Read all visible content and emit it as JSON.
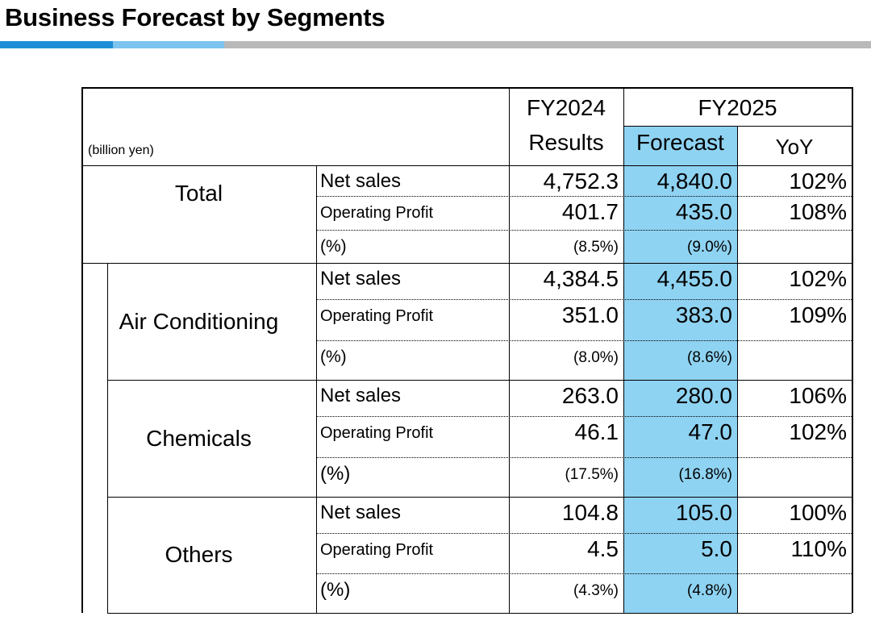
{
  "page": {
    "title": "Business Forecast by Segments"
  },
  "table": {
    "unit": "(billion yen)",
    "header": {
      "fy2024": "FY2024",
      "fy2024_sub": "Results",
      "fy2025": "FY2025",
      "forecast": "Forecast",
      "yoy": "YoY"
    },
    "segments": [
      {
        "name": "Total",
        "net_sales_label": "Net sales",
        "net_sales_fy2024": "4,752.3",
        "net_sales_fy2025": "4,840.0",
        "net_sales_yoy": "102%",
        "op_label": "Operating Profit",
        "op_fy2024": "401.7",
        "op_fy2025": "435.0",
        "op_yoy": "108%",
        "margin_label": "(%)",
        "margin_fy2024": "(8.5%)",
        "margin_fy2025": "(9.0%)"
      },
      {
        "name": "Air Conditioning",
        "net_sales_label": "Net sales",
        "net_sales_fy2024": "4,384.5",
        "net_sales_fy2025": "4,455.0",
        "net_sales_yoy": "102%",
        "op_label": "Operating Profit",
        "op_fy2024": "351.0",
        "op_fy2025": "383.0",
        "op_yoy": "109%",
        "margin_label": "(%)",
        "margin_fy2024": "(8.0%)",
        "margin_fy2025": "(8.6%)"
      },
      {
        "name": "Chemicals",
        "net_sales_label": "Net sales",
        "net_sales_fy2024": "263.0",
        "net_sales_fy2025": "280.0",
        "net_sales_yoy": "106%",
        "op_label": "Operating Profit",
        "op_fy2024": "46.1",
        "op_fy2025": "47.0",
        "op_yoy": "102%",
        "margin_label": "(%)",
        "margin_fy2024": "(17.5%)",
        "margin_fy2025": "(16.8%)"
      },
      {
        "name": "Others",
        "net_sales_label": "Net sales",
        "net_sales_fy2024": "104.8",
        "net_sales_fy2025": "105.0",
        "net_sales_yoy": "100%",
        "op_label": "Operating Profit",
        "op_fy2024": "4.5",
        "op_fy2025": "5.0",
        "op_yoy": "110%",
        "margin_label": "(%)",
        "margin_fy2024": "(4.3%)",
        "margin_fy2025": "(4.8%)"
      }
    ]
  },
  "colors": {
    "forecast_highlight": "#8fd3f2",
    "bar_blue": "#1e8fd6",
    "bar_light_blue": "#7dc4ee",
    "bar_grey": "#b9b9b9"
  }
}
